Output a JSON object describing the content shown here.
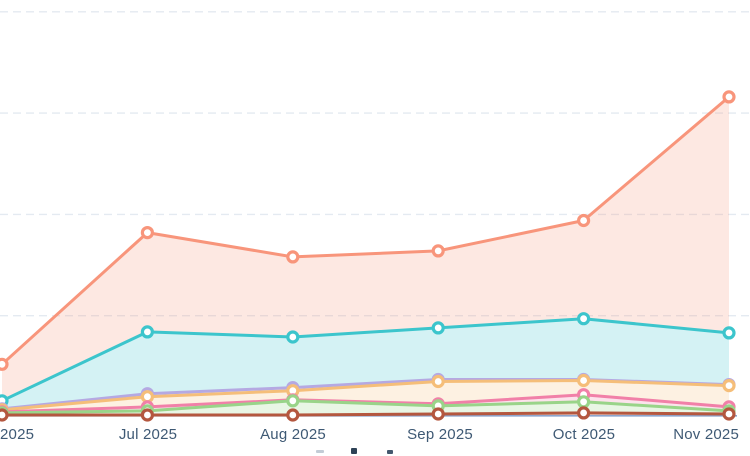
{
  "chart_data": {
    "type": "area",
    "title": "",
    "xlabel": "",
    "ylabel": "",
    "categories": [
      "2025",
      "Jul 2025",
      "Aug 2025",
      "Sep 2025",
      "Oct 2025",
      "Nov 2025"
    ],
    "categories_note": "first category label is cropped by the left edge of the screenshot (likely 'Jun 2025')",
    "series": [
      {
        "name": "salmon",
        "color": "#F8957B",
        "values": [
          52,
          182,
          158,
          164,
          194,
          316
        ]
      },
      {
        "name": "teal",
        "color": "#3CC5CC",
        "values": [
          16,
          84,
          79,
          88,
          97,
          83
        ]
      },
      {
        "name": "purple",
        "color": "#B5A9E2",
        "values": [
          8,
          23,
          29,
          37,
          37,
          32
        ]
      },
      {
        "name": "orange",
        "color": "#F5BE79",
        "values": [
          7,
          20,
          26,
          35,
          36,
          31
        ]
      },
      {
        "name": "pink",
        "color": "#F180A8",
        "values": [
          5,
          10,
          17,
          13,
          22,
          10
        ]
      },
      {
        "name": "green",
        "color": "#99D489",
        "values": [
          4,
          6,
          16,
          11,
          15,
          6
        ]
      },
      {
        "name": "brick",
        "color": "#B4573F",
        "values": [
          2,
          2,
          2,
          3,
          4,
          3
        ]
      }
    ],
    "ylim": [
      0,
      410
    ],
    "y_axis_labels_visible": false,
    "values_note": "y-axis labels are cropped out of frame; values estimated in gridline units (one dashed gridline = 100)",
    "grid": "horizontal-dashed",
    "gridline_values": [
      100,
      200,
      300,
      400
    ],
    "gridline_color": "#E4EAF1",
    "axis_line_color": "#8CA5CD",
    "marker_style": "white-filled ring",
    "legend": "cropped out of frame at bottom edge (only tops of glyphs visible)",
    "label_color": "#3E5974"
  }
}
